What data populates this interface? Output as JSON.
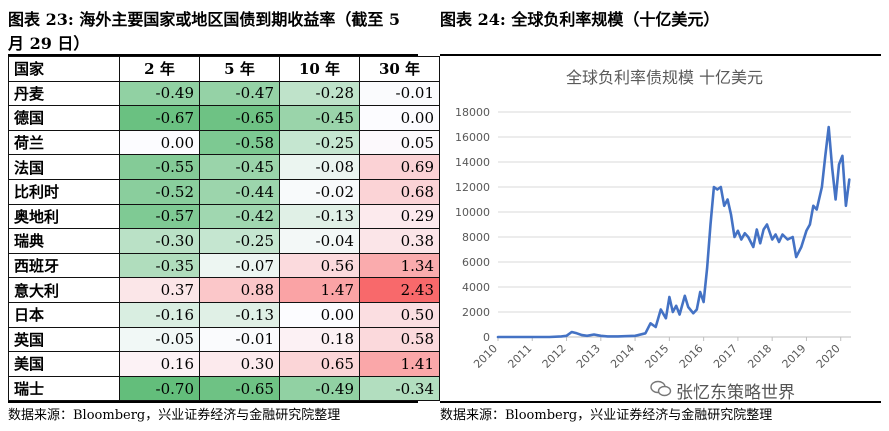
{
  "left_panel": {
    "title": "图表 23:  海外主要国家或地区国债到期收益率（截至 5 月 29 日）",
    "source": "数据来源：Bloomberg，兴业证券经济与金融研究院整理"
  },
  "right_panel": {
    "title": "图表 24:  全球负利率规模（十亿美元）",
    "source": "数据来源：Bloomberg，兴业证券经济与金融研究院整理"
  },
  "watermark": "张忆东策略世界",
  "colors": {
    "line": "#4472C4",
    "positive": "#F8696B",
    "negative": "#63BE7B",
    "neutral": "#FCFCFF"
  },
  "chart_data": [
    {
      "type": "table",
      "columns": [
        "国家",
        "2 年",
        "5 年",
        "10 年",
        "30 年"
      ],
      "rows": [
        {
          "country": "丹麦",
          "values": [
            -0.49,
            -0.47,
            -0.28,
            -0.01
          ]
        },
        {
          "country": "德国",
          "values": [
            -0.67,
            -0.65,
            -0.45,
            0.0
          ]
        },
        {
          "country": "荷兰",
          "values": [
            0.0,
            -0.58,
            -0.25,
            0.05
          ]
        },
        {
          "country": "法国",
          "values": [
            -0.55,
            -0.45,
            -0.08,
            0.69
          ]
        },
        {
          "country": "比利时",
          "values": [
            -0.52,
            -0.44,
            -0.02,
            0.68
          ]
        },
        {
          "country": "奥地利",
          "values": [
            -0.57,
            -0.42,
            -0.13,
            0.29
          ]
        },
        {
          "country": "瑞典",
          "values": [
            -0.3,
            -0.25,
            -0.04,
            0.38
          ]
        },
        {
          "country": "西班牙",
          "values": [
            -0.35,
            -0.07,
            0.56,
            1.34
          ]
        },
        {
          "country": "意大利",
          "values": [
            0.37,
            0.88,
            1.47,
            2.43
          ]
        },
        {
          "country": "日本",
          "values": [
            -0.16,
            -0.13,
            0.0,
            0.5
          ]
        },
        {
          "country": "英国",
          "values": [
            -0.05,
            -0.01,
            0.18,
            0.58
          ]
        },
        {
          "country": "美国",
          "values": [
            0.16,
            0.3,
            0.65,
            1.41
          ]
        },
        {
          "country": "瑞士",
          "values": [
            -0.7,
            -0.65,
            -0.49,
            -0.34
          ]
        }
      ]
    },
    {
      "type": "line",
      "title": "全球负利率债规模 十亿美元",
      "xlabel": "",
      "ylabel": "",
      "xlim": [
        2010,
        2020.3
      ],
      "ylim": [
        0,
        18000
      ],
      "yticks": [
        0,
        2000,
        4000,
        6000,
        8000,
        10000,
        12000,
        14000,
        16000,
        18000
      ],
      "xticks": [
        "2010",
        "2011",
        "2012",
        "2013",
        "2014",
        "2015",
        "2016",
        "2017",
        "2018",
        "2019",
        "2020"
      ],
      "grid": true,
      "legend": "none",
      "series": [
        {
          "x": [
            2010.0,
            2011.0,
            2011.5,
            2011.85,
            2012.0,
            2012.15,
            2012.3,
            2012.45,
            2012.6,
            2012.8,
            2013.0,
            2013.2,
            2013.5,
            2014.0,
            2014.3,
            2014.45,
            2014.6,
            2014.75,
            2014.9,
            2015.0,
            2015.1,
            2015.2,
            2015.3,
            2015.45,
            2015.55,
            2015.7,
            2015.8,
            2015.9,
            2016.0,
            2016.1,
            2016.2,
            2016.3,
            2016.4,
            2016.5,
            2016.6,
            2016.7,
            2016.8,
            2016.9,
            2017.0,
            2017.1,
            2017.2,
            2017.3,
            2017.45,
            2017.55,
            2017.65,
            2017.75,
            2017.85,
            2018.0,
            2018.1,
            2018.2,
            2018.3,
            2018.45,
            2018.6,
            2018.7,
            2018.85,
            2019.0,
            2019.1,
            2019.2,
            2019.3,
            2019.45,
            2019.55,
            2019.65,
            2019.75,
            2019.85,
            2019.95,
            2020.05,
            2020.15,
            2020.25
          ],
          "values": [
            0,
            0,
            0,
            50,
            100,
            400,
            300,
            150,
            100,
            200,
            100,
            50,
            50,
            100,
            300,
            1100,
            800,
            2200,
            1500,
            3200,
            2000,
            2500,
            1800,
            3300,
            2400,
            1900,
            2200,
            3600,
            2800,
            5500,
            9000,
            12000,
            11800,
            12000,
            10500,
            11000,
            9800,
            8000,
            8500,
            7800,
            8300,
            8000,
            7200,
            8600,
            7500,
            8600,
            9000,
            7800,
            8200,
            7600,
            8200,
            7800,
            8000,
            6400,
            7200,
            8500,
            9000,
            10500,
            10200,
            12000,
            14500,
            16800,
            13500,
            11000,
            13800,
            14500,
            10500,
            12600
          ]
        }
      ]
    }
  ]
}
